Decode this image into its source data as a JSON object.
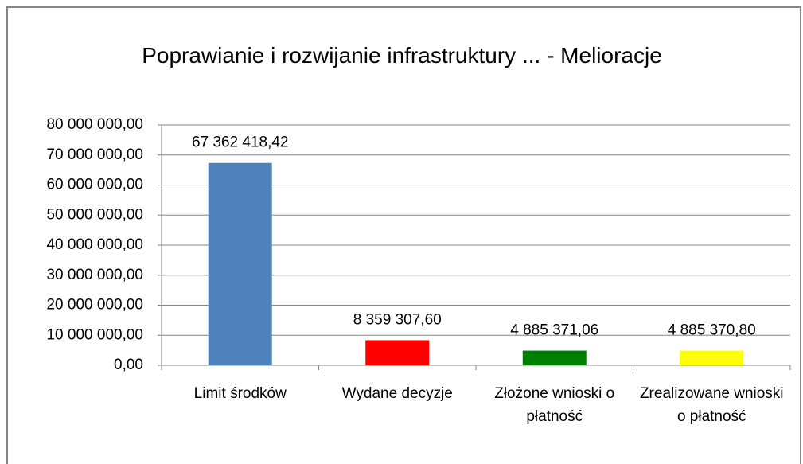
{
  "chart_data": {
    "type": "bar",
    "title": "Poprawianie i rozwijanie infrastruktury ... - Melioracje",
    "categories": [
      "Limit środków",
      "Wydane decyzje",
      "Złożone wnioski o płatność",
      "Zrealizowane wnioski o płatność"
    ],
    "values": [
      67362418.42,
      8359307.6,
      4885371.06,
      4885370.8
    ],
    "value_labels": [
      "67 362 418,42",
      "8 359 307,60",
      "4 885 371,06",
      "4 885 370,80"
    ],
    "colors": [
      "#4f81bd",
      "#ff0000",
      "#008000",
      "#ffff00"
    ],
    "ylim": [
      0,
      80000000
    ],
    "yticks": [
      {
        "value": 0,
        "label": "0,00"
      },
      {
        "value": 10000000,
        "label": "10 000 000,00"
      },
      {
        "value": 20000000,
        "label": "20 000 000,00"
      },
      {
        "value": 30000000,
        "label": "30 000 000,00"
      },
      {
        "value": 40000000,
        "label": "40 000 000,00"
      },
      {
        "value": 50000000,
        "label": "50 000 000,00"
      },
      {
        "value": 60000000,
        "label": "60 000 000,00"
      },
      {
        "value": 70000000,
        "label": "70 000 000,00"
      },
      {
        "value": 80000000,
        "label": "80 000 000,00"
      }
    ],
    "grid": true
  }
}
